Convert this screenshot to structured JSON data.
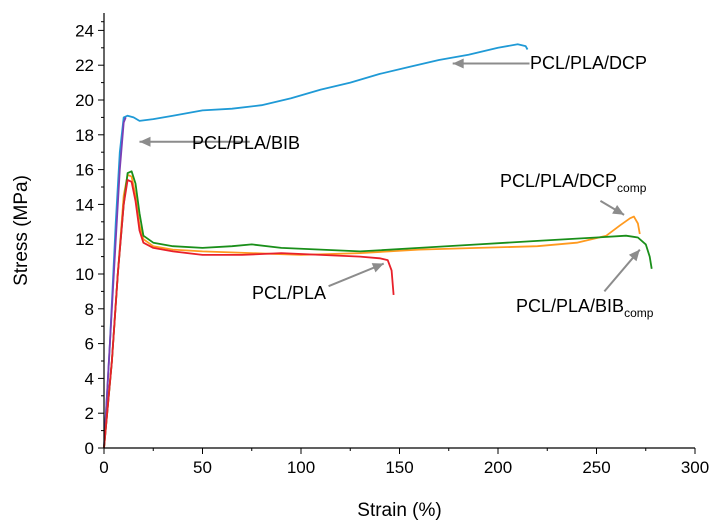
{
  "chart_data": {
    "type": "line",
    "xlabel": "Strain (%)",
    "ylabel": "Stress (MPa)",
    "xlim": [
      0,
      300
    ],
    "ylim": [
      0,
      25
    ],
    "x_ticks": [
      0,
      50,
      100,
      150,
      200,
      250,
      300
    ],
    "y_ticks": [
      0,
      2,
      4,
      6,
      8,
      10,
      12,
      14,
      16,
      18,
      20,
      22,
      24
    ],
    "grid": false,
    "legend": "none",
    "series": [
      {
        "name": "PCL/PLA/DCP",
        "color": "#1f9ad6",
        "x": [
          0,
          3,
          6,
          8,
          10,
          12,
          15,
          18,
          25,
          35,
          50,
          65,
          80,
          95,
          110,
          125,
          140,
          155,
          170,
          185,
          200,
          210,
          214,
          215
        ],
        "y": [
          0,
          6,
          13,
          17,
          19,
          19.1,
          19,
          18.8,
          18.9,
          19.1,
          19.4,
          19.5,
          19.7,
          20.1,
          20.6,
          21.0,
          21.5,
          21.9,
          22.3,
          22.6,
          23.0,
          23.2,
          23.1,
          22.9
        ]
      },
      {
        "name": "PCL/PLA/BIB",
        "color": "#7b3fb5",
        "x": [
          0,
          3,
          6,
          8,
          10,
          11
        ],
        "y": [
          0,
          6,
          12,
          16,
          18.7,
          19
        ]
      },
      {
        "name": "PCL/PLA/DCPcomp",
        "color": "#ff9a1f",
        "x": [
          0,
          4,
          7,
          10,
          12,
          14,
          16,
          18,
          20,
          25,
          35,
          50,
          75,
          100,
          130,
          160,
          190,
          220,
          240,
          255,
          262,
          267,
          269,
          271,
          272
        ],
        "y": [
          0,
          5,
          10,
          14.5,
          15.7,
          15.6,
          14.5,
          12.8,
          12.0,
          11.6,
          11.4,
          11.3,
          11.2,
          11.1,
          11.2,
          11.4,
          11.5,
          11.6,
          11.8,
          12.2,
          12.8,
          13.2,
          13.3,
          12.9,
          12.3
        ]
      },
      {
        "name": "PCL/PLA/BIBcomp",
        "color": "#1a8f1a",
        "x": [
          0,
          4,
          7,
          10,
          12,
          14,
          16,
          18,
          20,
          25,
          35,
          50,
          65,
          75,
          90,
          110,
          130,
          160,
          190,
          220,
          250,
          265,
          271,
          275,
          277,
          278
        ],
        "y": [
          0,
          5,
          10,
          14,
          15.8,
          15.9,
          15.2,
          13.5,
          12.2,
          11.8,
          11.6,
          11.5,
          11.6,
          11.7,
          11.5,
          11.4,
          11.3,
          11.5,
          11.7,
          11.9,
          12.1,
          12.2,
          12.1,
          11.7,
          11.0,
          10.3
        ]
      },
      {
        "name": "PCL/PLA",
        "color": "#e8202a",
        "x": [
          0,
          4,
          7,
          10,
          12,
          14,
          16,
          18,
          20,
          25,
          35,
          50,
          70,
          90,
          110,
          130,
          140,
          144,
          146,
          147
        ],
        "y": [
          0,
          5,
          10,
          14,
          15.4,
          15.3,
          14.2,
          12.5,
          11.8,
          11.5,
          11.3,
          11.1,
          11.1,
          11.2,
          11.1,
          11.0,
          10.9,
          10.8,
          10.2,
          8.8
        ]
      }
    ],
    "annotations": [
      {
        "text": "PCL/PLA/DCP",
        "sub": "",
        "ax": 216,
        "ay": 22.1,
        "tx": 177,
        "ty": 22.1
      },
      {
        "text": "PCL/PLA/BIB",
        "sub": "",
        "ax": 74,
        "ay": 17.6,
        "tx": 18,
        "ty": 17.6
      },
      {
        "text": "PCL/PLA/DCP",
        "sub": "comp",
        "ax": 252,
        "ay": 14.2,
        "tx": 264,
        "ty": 13.4
      },
      {
        "text": "PCL/PLA/BIB",
        "sub": "comp",
        "ax": 254,
        "ay": 9.0,
        "tx": 272,
        "ty": 11.4
      },
      {
        "text": "PCL/PLA",
        "sub": "",
        "ax": 114,
        "ay": 9.3,
        "tx": 142,
        "ty": 10.6
      }
    ]
  }
}
